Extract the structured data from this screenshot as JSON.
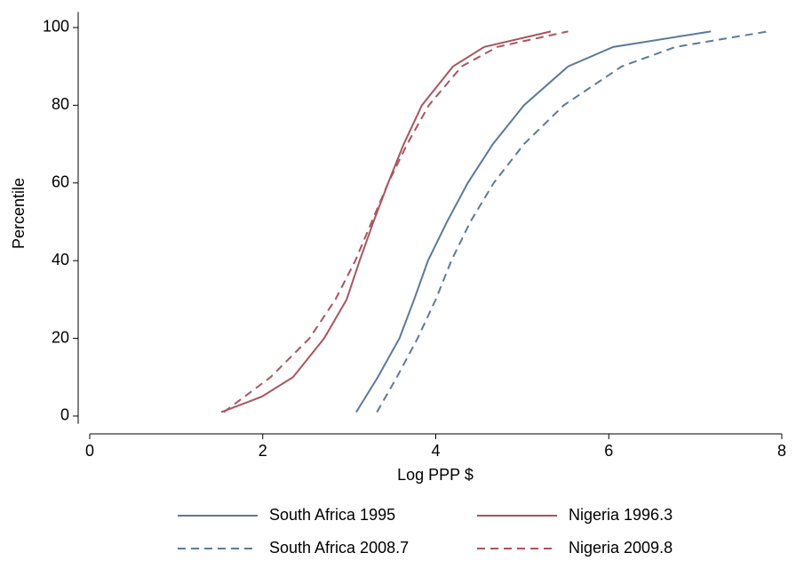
{
  "chart_data": {
    "type": "line",
    "xlabel": "Log PPP $",
    "ylabel": "Percentile",
    "xlim": [
      0,
      8
    ],
    "xticks": [
      0,
      2,
      4,
      6,
      8
    ],
    "ylim": [
      -2,
      104
    ],
    "yticks": [
      0,
      20,
      40,
      60,
      80,
      100
    ],
    "legend": "bottom",
    "series": [
      {
        "name": "South Africa 1995",
        "color": "#5b7a99",
        "dashed": false,
        "x": [
          3.08,
          3.33,
          3.58,
          3.75,
          3.91,
          4.13,
          4.37,
          4.66,
          5.02,
          5.53,
          6.05,
          7.18
        ],
        "values": [
          1,
          10,
          20,
          30,
          40,
          50,
          60,
          70,
          80,
          90,
          95,
          99
        ]
      },
      {
        "name": "Nigeria 1996.3",
        "color": "#a8565e",
        "dashed": false,
        "x": [
          1.52,
          1.99,
          2.35,
          2.71,
          2.97,
          3.12,
          3.28,
          3.45,
          3.63,
          3.84,
          4.2,
          4.56,
          5.33
        ],
        "values": [
          1,
          5,
          10,
          20,
          30,
          40,
          50,
          60,
          70,
          80,
          90,
          95,
          99
        ]
      },
      {
        "name": "South Africa 2008.7",
        "color": "#5b7a99",
        "dashed": true,
        "x": [
          3.32,
          3.55,
          3.79,
          4.0,
          4.18,
          4.4,
          4.67,
          5.02,
          5.48,
          6.15,
          6.77,
          7.84
        ],
        "values": [
          1,
          10,
          20,
          30,
          40,
          50,
          60,
          70,
          80,
          90,
          95,
          99
        ]
      },
      {
        "name": "Nigeria 2009.8",
        "color": "#a8565e",
        "dashed": true,
        "x": [
          1.55,
          1.79,
          2.09,
          2.54,
          2.84,
          3.07,
          3.26,
          3.45,
          3.67,
          3.92,
          4.3,
          4.71,
          5.53
        ],
        "values": [
          1,
          5,
          10,
          20,
          30,
          40,
          50,
          60,
          70,
          80,
          90,
          95,
          99
        ]
      }
    ]
  }
}
